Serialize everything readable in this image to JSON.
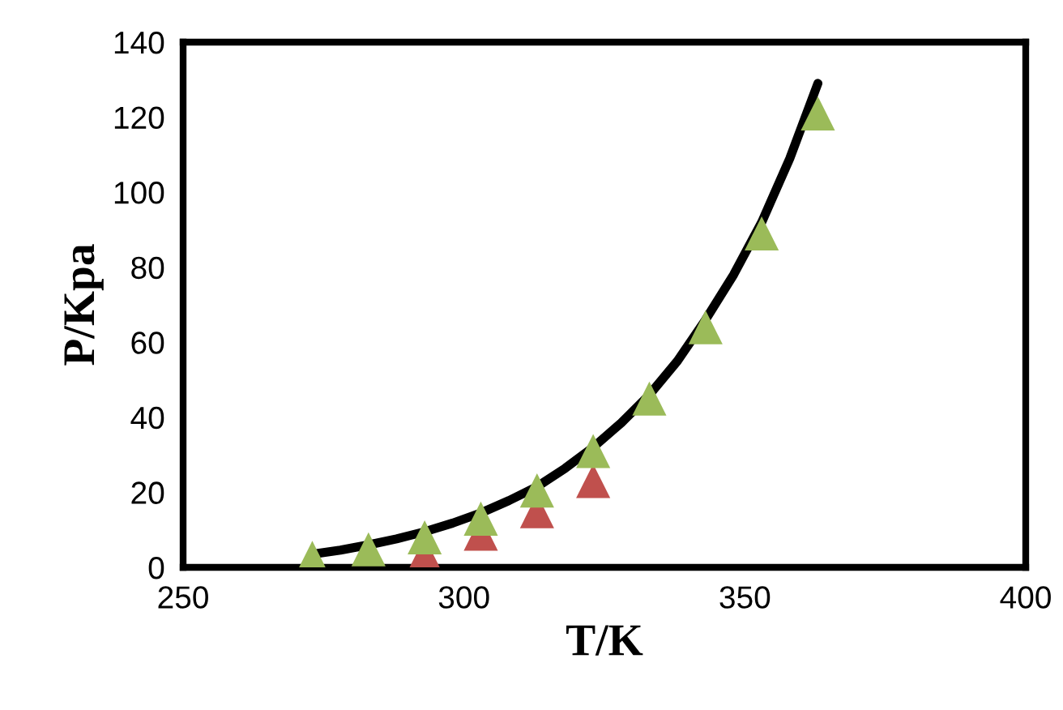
{
  "chart_data": {
    "type": "scatter",
    "xlabel": "T/K",
    "ylabel": "P/Kpa",
    "xlim": [
      250,
      400
    ],
    "xticks": [
      250,
      300,
      350,
      400
    ],
    "ylim": [
      0,
      140
    ],
    "yticks": [
      0,
      20,
      40,
      60,
      80,
      100,
      120,
      140
    ],
    "grid": false,
    "marker": "triangle",
    "series": [
      {
        "type": "line",
        "marker": "none",
        "color": "#000000",
        "line_style": "solid",
        "x": [
          273,
          278,
          283,
          288,
          293,
          298,
          303,
          308,
          313,
          318,
          323,
          328,
          333,
          338,
          343,
          348,
          353,
          358,
          363
        ],
        "values": [
          3.5,
          4.6,
          6,
          7.6,
          9.5,
          11.8,
          14.5,
          17.8,
          21.5,
          26.4,
          32,
          38.5,
          46,
          55,
          66,
          78,
          92,
          109,
          129
        ]
      },
      {
        "color": "#c0504d",
        "x": [
          293,
          303,
          313,
          323
        ],
        "values": [
          3.5,
          9,
          15,
          23
        ]
      },
      {
        "color": "#9bbb59",
        "x": [
          273,
          283,
          293,
          303,
          313,
          323,
          333,
          343,
          353,
          363
        ],
        "values": [
          2.5,
          4.8,
          8,
          13,
          20.5,
          31,
          45,
          64,
          89,
          121
        ]
      }
    ]
  }
}
